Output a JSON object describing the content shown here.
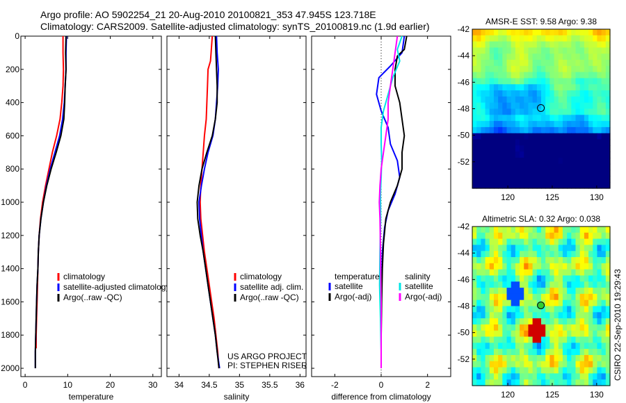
{
  "header": {
    "line1": "Argo profile: AO 5902254_21 20-Aug-2010 20100821_353 47.945S 123.718E",
    "line2": "Climatology: CARS2009. Satellite-adjusted climatology: synTS_20100819.nc (1.9d earlier)"
  },
  "side_label": "CSIRO 22-Sep-2010 19:29:43",
  "colors": {
    "climatology": "#ff0000",
    "satellite": "#0000ff",
    "argo": "#000000",
    "temp_sat_diff": "#0000ff",
    "temp_argo_diff": "#000000",
    "sal_sat_diff": "#00e5e5",
    "sal_argo_diff": "#ff00ff"
  },
  "chart_data": [
    {
      "id": "temperature",
      "type": "line",
      "xlabel": "temperature",
      "xlim": [
        -1,
        32
      ],
      "ylim": [
        2050,
        0
      ],
      "xticks": [
        0,
        10,
        20,
        30
      ],
      "yticks": [
        0,
        200,
        400,
        600,
        800,
        1000,
        1200,
        1400,
        1600,
        1800,
        2000
      ],
      "legend": [
        "climatology",
        "satellite-adjusted climatology",
        "Argo(..raw -QC)"
      ],
      "legend_position": "bottom-right",
      "series": [
        {
          "name": "climatology",
          "color_key": "climatology",
          "points": [
            [
              8.9,
              0
            ],
            [
              8.9,
              100
            ],
            [
              9.0,
              200
            ],
            [
              8.9,
              300
            ],
            [
              8.6,
              400
            ],
            [
              8.2,
              500
            ],
            [
              7.4,
              600
            ],
            [
              6.4,
              700
            ],
            [
              5.6,
              800
            ],
            [
              4.8,
              900
            ],
            [
              4.1,
              1000
            ],
            [
              3.6,
              1100
            ],
            [
              3.3,
              1200
            ],
            [
              3.1,
              1300
            ],
            [
              3.0,
              1400
            ],
            [
              2.9,
              1500
            ],
            [
              2.8,
              1600
            ],
            [
              2.7,
              1700
            ],
            [
              2.6,
              1800
            ],
            [
              2.6,
              1880
            ]
          ]
        },
        {
          "name": "satellite",
          "color_key": "satellite",
          "points": [
            [
              9.7,
              0
            ],
            [
              9.6,
              100
            ],
            [
              9.6,
              200
            ],
            [
              9.4,
              300
            ],
            [
              9.2,
              400
            ],
            [
              8.8,
              500
            ],
            [
              8.1,
              600
            ],
            [
              7.0,
              700
            ],
            [
              5.9,
              800
            ],
            [
              5.0,
              900
            ],
            [
              4.3,
              1000
            ],
            [
              3.7,
              1100
            ],
            [
              3.3,
              1200
            ],
            [
              3.1,
              1300
            ],
            [
              3.0,
              1400
            ],
            [
              2.8,
              1500
            ],
            [
              2.7,
              1600
            ],
            [
              2.6,
              1700
            ],
            [
              2.5,
              1800
            ],
            [
              2.4,
              1900
            ],
            [
              2.4,
              2000
            ]
          ]
        },
        {
          "name": "argo",
          "color_key": "argo",
          "points": [
            [
              9.6,
              0
            ],
            [
              9.5,
              100
            ],
            [
              9.6,
              200
            ],
            [
              9.4,
              300
            ],
            [
              9.3,
              400
            ],
            [
              9.1,
              500
            ],
            [
              8.4,
              600
            ],
            [
              7.3,
              700
            ],
            [
              6.1,
              800
            ],
            [
              5.1,
              900
            ],
            [
              4.3,
              1000
            ],
            [
              3.7,
              1100
            ],
            [
              3.3,
              1200
            ],
            [
              3.1,
              1300
            ],
            [
              3.0,
              1400
            ],
            [
              2.8,
              1500
            ],
            [
              2.7,
              1600
            ],
            [
              2.6,
              1700
            ],
            [
              2.5,
              1800
            ],
            [
              2.4,
              1900
            ],
            [
              2.4,
              2000
            ]
          ]
        }
      ]
    },
    {
      "id": "salinity",
      "type": "line",
      "xlabel": "salinity",
      "xlim": [
        33.8,
        36.1
      ],
      "ylim": [
        2050,
        0
      ],
      "xticks": [
        34,
        34.5,
        35,
        35.5,
        36
      ],
      "xtick_labels": [
        "34",
        "34.5",
        "35",
        "35.5",
        "36"
      ],
      "legend": [
        "climatology",
        "satellite adj. clim.",
        "Argo(..raw -QC)"
      ],
      "legend_position": "bottom-right",
      "annotations": [
        "US ARGO PROJECT",
        "PI: STEPHEN RISER"
      ],
      "series": [
        {
          "name": "climatology",
          "color_key": "climatology",
          "points": [
            [
              34.55,
              0
            ],
            [
              34.53,
              100
            ],
            [
              34.52,
              150
            ],
            [
              34.48,
              200
            ],
            [
              34.47,
              300
            ],
            [
              34.46,
              400
            ],
            [
              34.45,
              500
            ],
            [
              34.42,
              600
            ],
            [
              34.4,
              700
            ],
            [
              34.38,
              800
            ],
            [
              34.36,
              900
            ],
            [
              34.35,
              1000
            ],
            [
              34.36,
              1100
            ],
            [
              34.39,
              1200
            ],
            [
              34.42,
              1300
            ],
            [
              34.46,
              1400
            ],
            [
              34.5,
              1500
            ],
            [
              34.54,
              1600
            ],
            [
              34.58,
              1700
            ],
            [
              34.61,
              1800
            ],
            [
              34.64,
              1900
            ],
            [
              34.66,
              2000
            ]
          ]
        },
        {
          "name": "satellite",
          "color_key": "satellite",
          "points": [
            [
              34.62,
              0
            ],
            [
              34.63,
              100
            ],
            [
              34.65,
              200
            ],
            [
              34.64,
              300
            ],
            [
              34.62,
              400
            ],
            [
              34.6,
              500
            ],
            [
              34.56,
              600
            ],
            [
              34.48,
              700
            ],
            [
              34.42,
              800
            ],
            [
              34.37,
              900
            ],
            [
              34.33,
              1000
            ],
            [
              34.34,
              1100
            ],
            [
              34.37,
              1200
            ],
            [
              34.4,
              1300
            ],
            [
              34.44,
              1400
            ],
            [
              34.48,
              1500
            ],
            [
              34.52,
              1600
            ],
            [
              34.56,
              1700
            ],
            [
              34.6,
              1800
            ],
            [
              34.63,
              1900
            ],
            [
              34.67,
              2000
            ]
          ]
        },
        {
          "name": "argo",
          "color_key": "argo",
          "points": [
            [
              34.6,
              0
            ],
            [
              34.61,
              100
            ],
            [
              34.62,
              200
            ],
            [
              34.63,
              300
            ],
            [
              34.63,
              400
            ],
            [
              34.6,
              500
            ],
            [
              34.55,
              600
            ],
            [
              34.46,
              700
            ],
            [
              34.38,
              800
            ],
            [
              34.33,
              900
            ],
            [
              34.3,
              1000
            ],
            [
              34.31,
              1100
            ],
            [
              34.35,
              1200
            ],
            [
              34.4,
              1300
            ],
            [
              34.44,
              1400
            ],
            [
              34.48,
              1500
            ],
            [
              34.52,
              1600
            ],
            [
              34.56,
              1700
            ],
            [
              34.6,
              1800
            ],
            [
              34.63,
              1900
            ],
            [
              34.66,
              2000
            ]
          ]
        }
      ]
    },
    {
      "id": "difference",
      "type": "line",
      "xlabel": "difference from climatology",
      "xlim": [
        -3,
        3
      ],
      "ylim": [
        2050,
        0
      ],
      "xticks": [
        -2,
        0,
        2
      ],
      "zero_line": 0,
      "legend": [
        {
          "group": "temperature",
          "items": [
            "satellite",
            "Argo(-adj)"
          ]
        },
        {
          "group": "salinity",
          "items": [
            "satellite",
            "Argo(-adj)"
          ]
        }
      ],
      "legend_position": "bottom",
      "series": [
        {
          "name": "temperature satellite",
          "color_key": "temp_sat_diff",
          "points": [
            [
              1.0,
              0
            ],
            [
              0.9,
              100
            ],
            [
              0.4,
              180
            ],
            [
              -0.1,
              250
            ],
            [
              -0.2,
              350
            ],
            [
              0.0,
              450
            ],
            [
              0.3,
              550
            ],
            [
              0.4,
              650
            ],
            [
              0.7,
              750
            ],
            [
              0.8,
              850
            ],
            [
              0.6,
              950
            ],
            [
              0.3,
              1050
            ],
            [
              0.15,
              1150
            ],
            [
              0.05,
              1300
            ],
            [
              0.02,
              1500
            ],
            [
              0.0,
              1700
            ],
            [
              0.0,
              1900
            ],
            [
              0.0,
              2000
            ]
          ]
        },
        {
          "name": "temperature argo",
          "color_key": "temp_argo_diff",
          "points": [
            [
              1.1,
              0
            ],
            [
              1.0,
              80
            ],
            [
              0.7,
              120
            ],
            [
              0.6,
              200
            ],
            [
              0.6,
              300
            ],
            [
              0.8,
              400
            ],
            [
              0.9,
              500
            ],
            [
              1.0,
              600
            ],
            [
              0.9,
              700
            ],
            [
              0.9,
              800
            ],
            [
              0.7,
              900
            ],
            [
              0.4,
              1000
            ],
            [
              0.2,
              1100
            ],
            [
              0.1,
              1250
            ],
            [
              0.05,
              1400
            ],
            [
              0.02,
              1600
            ],
            [
              0.0,
              1800
            ],
            [
              0.0,
              2000
            ]
          ]
        },
        {
          "name": "salinity satellite",
          "color_key": "sal_sat_diff",
          "points": [
            [
              0.9,
              0
            ],
            [
              0.7,
              80
            ],
            [
              0.8,
              150
            ],
            [
              0.5,
              250
            ],
            [
              0.3,
              350
            ],
            [
              0.1,
              450
            ],
            [
              0.0,
              550
            ],
            [
              0.0,
              650
            ],
            [
              0.02,
              750
            ],
            [
              0.0,
              850
            ],
            [
              -0.03,
              950
            ],
            [
              -0.02,
              1100
            ],
            [
              -0.05,
              1300
            ],
            [
              -0.07,
              1500
            ],
            [
              -0.03,
              1700
            ],
            [
              0.0,
              1900
            ],
            [
              0.0,
              2000
            ]
          ]
        },
        {
          "name": "salinity argo",
          "color_key": "sal_argo_diff",
          "points": [
            [
              0.7,
              0
            ],
            [
              0.6,
              100
            ],
            [
              0.5,
              200
            ],
            [
              0.4,
              300
            ],
            [
              0.3,
              400
            ],
            [
              0.3,
              500
            ],
            [
              0.2,
              600
            ],
            [
              0.1,
              700
            ],
            [
              0.0,
              800
            ],
            [
              -0.05,
              900
            ],
            [
              -0.08,
              1000
            ],
            [
              -0.05,
              1100
            ],
            [
              -0.04,
              1200
            ],
            [
              -0.02,
              1400
            ],
            [
              0.0,
              1600
            ],
            [
              0.0,
              1800
            ],
            [
              0.0,
              2000
            ]
          ]
        }
      ]
    },
    {
      "id": "sst_map",
      "type": "heatmap",
      "title": "AMSR-E SST: 9.58 Argo: 9.38",
      "xlim": [
        116,
        131.5
      ],
      "ylim": [
        -54,
        -42
      ],
      "xticks": [
        120,
        125,
        130
      ],
      "yticks": [
        -42,
        -44,
        -46,
        -48,
        -50,
        -52
      ],
      "marker": {
        "lon": 123.718,
        "lat": -47.945,
        "fill": "none"
      }
    },
    {
      "id": "sla_map",
      "type": "heatmap",
      "title": "Altimetric SLA: 0.32 Argo: 0.038",
      "xlim": [
        116,
        131.5
      ],
      "ylim": [
        -54,
        -42
      ],
      "xticks": [
        120,
        125,
        130
      ],
      "yticks": [
        -42,
        -44,
        -46,
        -48,
        -50,
        -52
      ],
      "marker": {
        "lon": 123.718,
        "lat": -47.945,
        "fill": "#33cc33"
      }
    }
  ]
}
